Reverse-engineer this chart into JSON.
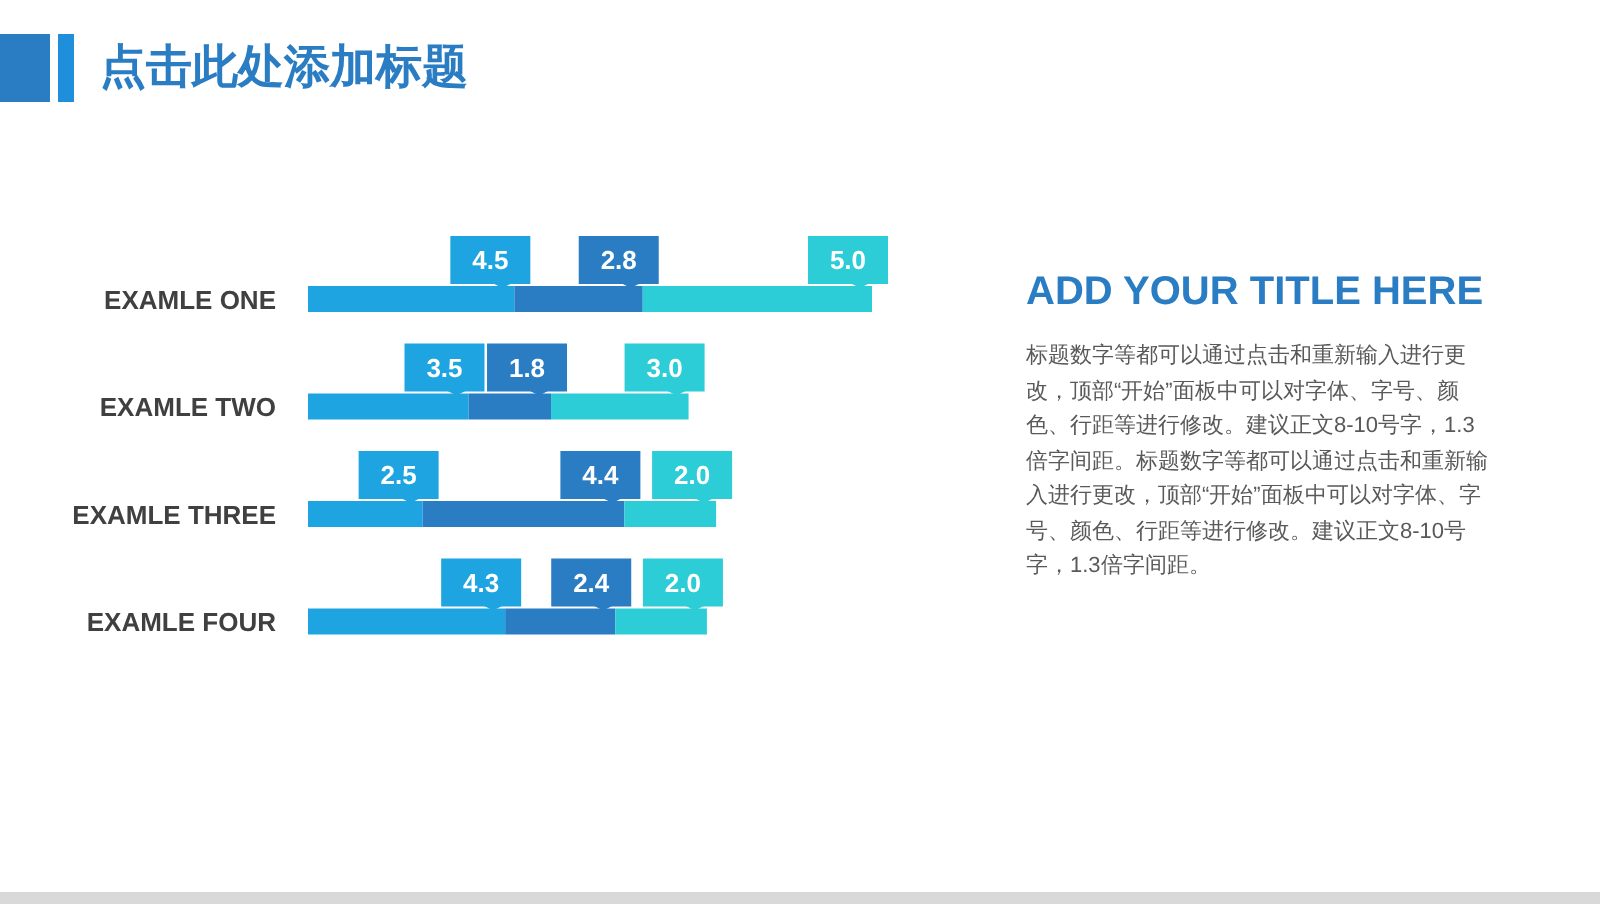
{
  "chart_data": [
    {
      "type": "bar",
      "title": "点击此处添加标题",
      "orientation": "horizontal",
      "stacked": true,
      "tick_labels": "y",
      "categories": [
        "EXAMLE ONE",
        "EXAMLE TWO",
        "EXAMLE THREE",
        "EXAMLE FOUR"
      ],
      "series": [
        {
          "color": "#1ea5e1",
          "values": [
            4.5,
            3.5,
            2.5,
            4.3
          ],
          "value_labels": [
            "4.5",
            "3.5",
            "2.5",
            "4.3"
          ]
        },
        {
          "color": "#2a7dc3",
          "values": [
            2.8,
            1.8,
            4.4,
            2.4
          ],
          "value_labels": [
            "2.8",
            "1.8",
            "4.4",
            "2.4"
          ]
        },
        {
          "color": "#2dcdd7",
          "values": [
            5.0,
            3.0,
            2.0,
            2.0
          ],
          "value_labels": [
            "5.0",
            "3.0",
            "2.0",
            "2.0"
          ]
        }
      ]
    },
    {
      "type": "other",
      "title": "ADD YOUR TITLE HERE",
      "annotations": [
        "标题数字等都可以通过点击和重新输入进行更改，顶部“开始”面板中可以对字体、字号、颜色、行距等进行修改。建议正文8-10号字，1.3倍字间距。标题数字等都可以通过点击和重新输入进行更改，顶部“开始”面板中可以对字体、字号、颜色、行距等进行修改。建议正文8-10号字，1.3倍字间距。"
      ]
    }
  ]
}
